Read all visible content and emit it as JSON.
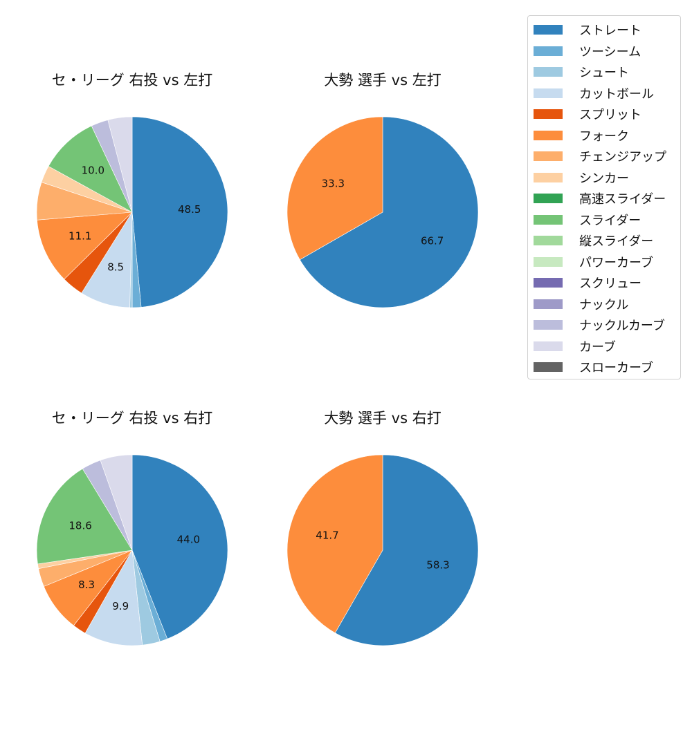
{
  "legend": {
    "items": [
      {
        "label": "ストレート",
        "color": "#3182bd"
      },
      {
        "label": "ツーシーム",
        "color": "#6baed6"
      },
      {
        "label": "シュート",
        "color": "#9ecae1"
      },
      {
        "label": "カットボール",
        "color": "#c6dbef"
      },
      {
        "label": "スプリット",
        "color": "#e6550d"
      },
      {
        "label": "フォーク",
        "color": "#fd8d3c"
      },
      {
        "label": "チェンジアップ",
        "color": "#fdae6b"
      },
      {
        "label": "シンカー",
        "color": "#fdd0a2"
      },
      {
        "label": "高速スライダー",
        "color": "#31a354"
      },
      {
        "label": "スライダー",
        "color": "#74c476"
      },
      {
        "label": "縦スライダー",
        "color": "#a1d99b"
      },
      {
        "label": "パワーカーブ",
        "color": "#c7e9c0"
      },
      {
        "label": "スクリュー",
        "color": "#756bb1"
      },
      {
        "label": "ナックル",
        "color": "#9e9ac8"
      },
      {
        "label": "ナックルカーブ",
        "color": "#bcbddc"
      },
      {
        "label": "カーブ",
        "color": "#dadaeb"
      },
      {
        "label": "スローカーブ",
        "color": "#636363"
      }
    ]
  },
  "chart_data": [
    {
      "type": "pie",
      "title": "セ・リーグ 右投 vs 左打",
      "start_angle": 90,
      "counterclock": false,
      "slices": [
        {
          "label": "ストレート",
          "value": 48.5,
          "shown": "48.5"
        },
        {
          "label": "ツーシーム",
          "value": 1.5,
          "shown": ""
        },
        {
          "label": "シュート",
          "value": 0.4,
          "shown": ""
        },
        {
          "label": "カットボール",
          "value": 8.5,
          "shown": "8.5"
        },
        {
          "label": "スプリット",
          "value": 3.7,
          "shown": ""
        },
        {
          "label": "フォーク",
          "value": 11.1,
          "shown": "11.1"
        },
        {
          "label": "チェンジアップ",
          "value": 6.4,
          "shown": ""
        },
        {
          "label": "シンカー",
          "value": 2.9,
          "shown": ""
        },
        {
          "label": "スライダー",
          "value": 10.0,
          "shown": "10.0"
        },
        {
          "label": "ナックルカーブ",
          "value": 2.9,
          "shown": ""
        },
        {
          "label": "カーブ",
          "value": 4.1,
          "shown": ""
        }
      ]
    },
    {
      "type": "pie",
      "title": "大勢 選手 vs 左打",
      "start_angle": 90,
      "counterclock": false,
      "slices": [
        {
          "label": "ストレート",
          "value": 66.7,
          "shown": "66.7"
        },
        {
          "label": "フォーク",
          "value": 33.3,
          "shown": "33.3"
        }
      ]
    },
    {
      "type": "pie",
      "title": "セ・リーグ 右投 vs 右打",
      "start_angle": 90,
      "counterclock": false,
      "slices": [
        {
          "label": "ストレート",
          "value": 44.0,
          "shown": "44.0"
        },
        {
          "label": "ツーシーム",
          "value": 1.3,
          "shown": ""
        },
        {
          "label": "シュート",
          "value": 3.0,
          "shown": ""
        },
        {
          "label": "カットボール",
          "value": 9.9,
          "shown": "9.9"
        },
        {
          "label": "スプリット",
          "value": 2.3,
          "shown": ""
        },
        {
          "label": "フォーク",
          "value": 8.3,
          "shown": "8.3"
        },
        {
          "label": "チェンジアップ",
          "value": 3.1,
          "shown": ""
        },
        {
          "label": "シンカー",
          "value": 0.8,
          "shown": ""
        },
        {
          "label": "スライダー",
          "value": 18.6,
          "shown": "18.6"
        },
        {
          "label": "ナックルカーブ",
          "value": 3.3,
          "shown": ""
        },
        {
          "label": "カーブ",
          "value": 5.4,
          "shown": ""
        }
      ]
    },
    {
      "type": "pie",
      "title": "大勢 選手 vs 右打",
      "start_angle": 90,
      "counterclock": false,
      "slices": [
        {
          "label": "ストレート",
          "value": 58.3,
          "shown": "58.3"
        },
        {
          "label": "フォーク",
          "value": 41.7,
          "shown": "41.7"
        }
      ]
    }
  ]
}
